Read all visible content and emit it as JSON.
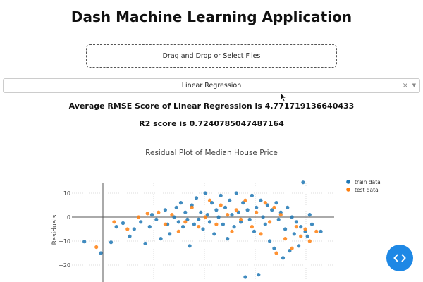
{
  "app": {
    "title": "Dash Machine Learning Application"
  },
  "upload": {
    "label": "Drag and Drop or Select Files"
  },
  "model_select": {
    "value": "Linear Regression",
    "clear_glyph": "×",
    "arrow_glyph": "▼"
  },
  "scores": {
    "rmse_text": "Average RMSE Score of Linear Regression is 4.771719136640433",
    "r2_text": "R2 score is 0.7240785047487164"
  },
  "colors": {
    "train": "#1f77b4",
    "test": "#ff7f0e",
    "fab": "#1e88e5"
  },
  "icons": {
    "cursor": "mouse-pointer-icon",
    "fab": "code-brackets-icon"
  },
  "chart_data": {
    "type": "scatter",
    "title": "Residual Plot of Median House Price",
    "xlabel": "",
    "ylabel": "Residuals",
    "yticks": [
      10,
      0,
      -10,
      -20
    ],
    "ylim": [
      -26,
      17
    ],
    "xlim": [
      -4,
      55
    ],
    "grid": true,
    "legend_position": "top-right",
    "series": [
      {
        "name": "train data",
        "color": "#1f77b4",
        "points": [
          [
            -1.2,
            -10.2
          ],
          [
            2.5,
            -15
          ],
          [
            4.8,
            -10.5
          ],
          [
            6,
            -4
          ],
          [
            7.5,
            -2.5
          ],
          [
            9,
            -8
          ],
          [
            10,
            -5
          ],
          [
            11.5,
            -2
          ],
          [
            12.5,
            -11
          ],
          [
            13.5,
            -4
          ],
          [
            14,
            1
          ],
          [
            15,
            -1
          ],
          [
            16,
            -9
          ],
          [
            17,
            3
          ],
          [
            17.5,
            -3
          ],
          [
            18,
            -7
          ],
          [
            19,
            0
          ],
          [
            19.5,
            4
          ],
          [
            20,
            -2
          ],
          [
            20.5,
            6
          ],
          [
            21,
            -4
          ],
          [
            21.5,
            2
          ],
          [
            22,
            -1
          ],
          [
            22.5,
            -12
          ],
          [
            23,
            5
          ],
          [
            23.5,
            -3
          ],
          [
            24,
            8
          ],
          [
            24.5,
            -1
          ],
          [
            25,
            2
          ],
          [
            25.5,
            -5
          ],
          [
            26,
            10
          ],
          [
            26.5,
            1
          ],
          [
            27,
            -2
          ],
          [
            27.5,
            6
          ],
          [
            28,
            -7
          ],
          [
            28.5,
            3
          ],
          [
            29,
            0
          ],
          [
            29.5,
            9
          ],
          [
            30,
            -3
          ],
          [
            30.5,
            4
          ],
          [
            31,
            -9
          ],
          [
            31.5,
            7
          ],
          [
            32,
            1
          ],
          [
            32.5,
            -4
          ],
          [
            33,
            10
          ],
          [
            33.5,
            2
          ],
          [
            34,
            -2
          ],
          [
            34.5,
            6
          ],
          [
            35,
            -25
          ],
          [
            35.5,
            3
          ],
          [
            36,
            -1
          ],
          [
            36.5,
            9
          ],
          [
            37,
            -6
          ],
          [
            37.5,
            4
          ],
          [
            38,
            -24
          ],
          [
            38.5,
            7
          ],
          [
            39,
            0
          ],
          [
            39.5,
            -3
          ],
          [
            40,
            5
          ],
          [
            40.5,
            -10
          ],
          [
            41,
            3
          ],
          [
            41.5,
            -13
          ],
          [
            42,
            6
          ],
          [
            42.5,
            -1
          ],
          [
            43,
            2
          ],
          [
            43.5,
            -17
          ],
          [
            44,
            -5
          ],
          [
            44.5,
            4
          ],
          [
            45,
            -14
          ],
          [
            45.5,
            0
          ],
          [
            46,
            -7
          ],
          [
            46.5,
            -2
          ],
          [
            47,
            -12
          ],
          [
            47.5,
            -4
          ],
          [
            48,
            14.5
          ],
          [
            48.5,
            -6
          ],
          [
            49,
            -8
          ],
          [
            49.5,
            1
          ],
          [
            50,
            -3
          ],
          [
            52,
            -6
          ]
        ]
      },
      {
        "name": "test data",
        "color": "#ff7f0e",
        "points": [
          [
            1.5,
            -12.5
          ],
          [
            5.5,
            -2
          ],
          [
            8.5,
            -5
          ],
          [
            11,
            0
          ],
          [
            13,
            1.5
          ],
          [
            15.5,
            2
          ],
          [
            17,
            -3
          ],
          [
            18.5,
            1
          ],
          [
            20,
            -6
          ],
          [
            21.5,
            -2
          ],
          [
            23,
            4
          ],
          [
            24.5,
            -4
          ],
          [
            26,
            0
          ],
          [
            27,
            7
          ],
          [
            28.5,
            -3
          ],
          [
            29.5,
            5
          ],
          [
            31,
            1
          ],
          [
            32,
            -6
          ],
          [
            33,
            3
          ],
          [
            34,
            -1
          ],
          [
            35,
            7
          ],
          [
            36.5,
            -4
          ],
          [
            37.5,
            2
          ],
          [
            38.5,
            -7
          ],
          [
            39.5,
            6
          ],
          [
            40.5,
            -2
          ],
          [
            41.5,
            4
          ],
          [
            42,
            -15
          ],
          [
            43,
            1
          ],
          [
            44,
            -9
          ],
          [
            45.5,
            -13
          ],
          [
            46.5,
            -4
          ],
          [
            47.5,
            -8
          ],
          [
            48.5,
            -5
          ],
          [
            49.5,
            -10
          ],
          [
            51,
            -6
          ]
        ]
      }
    ]
  }
}
